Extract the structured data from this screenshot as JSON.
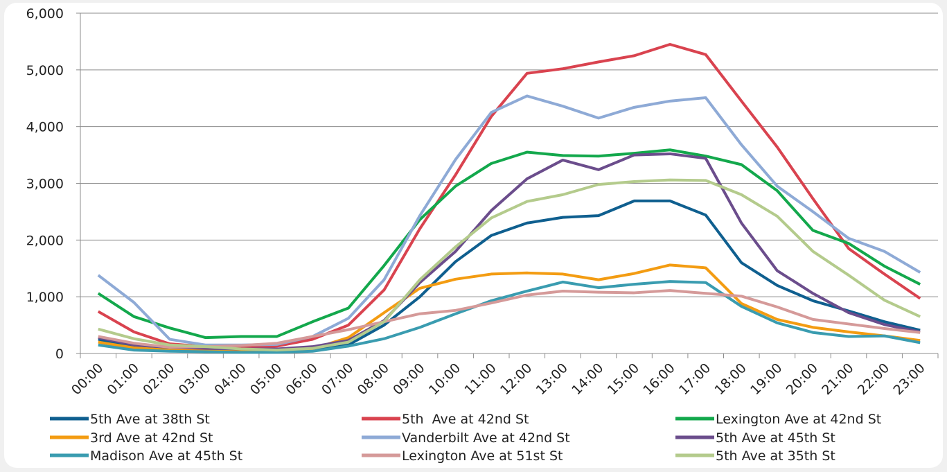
{
  "chart_data": {
    "type": "line",
    "categories": [
      "00:00",
      "01:00",
      "02:00",
      "03:00",
      "04:00",
      "05:00",
      "06:00",
      "07:00",
      "08:00",
      "09:00",
      "10:00",
      "11:00",
      "12:00",
      "13:00",
      "14:00",
      "15:00",
      "16:00",
      "17:00",
      "18:00",
      "19:00",
      "20:00",
      "21:00",
      "22:00",
      "23:00"
    ],
    "ylim": [
      0,
      6000
    ],
    "yticks": [
      0,
      {
        "value": 1000,
        "label": "1,000"
      },
      {
        "value": 2000,
        "label": "2,000"
      },
      {
        "value": 3000,
        "label": "3,000"
      },
      {
        "value": 4000,
        "label": "4,000"
      },
      {
        "value": 5000,
        "label": "5,000"
      },
      {
        "value": 6000,
        "label": "6,000"
      }
    ],
    "grid": true,
    "legend": "bottom",
    "series": [
      {
        "name": "5th Ave at 38th St",
        "color": "#0f5f8f",
        "values": [
          250,
          120,
          80,
          50,
          30,
          30,
          50,
          150,
          500,
          1000,
          1620,
          2080,
          2300,
          2400,
          2430,
          2690,
          2690,
          2440,
          1600,
          1200,
          930,
          750,
          560,
          410
        ]
      },
      {
        "name": "5th  Ave at 42nd St",
        "color": "#d9434f",
        "values": [
          740,
          380,
          170,
          120,
          110,
          130,
          250,
          500,
          1120,
          2200,
          3150,
          4180,
          4940,
          5020,
          5140,
          5250,
          5450,
          5270,
          4450,
          3640,
          2730,
          1850,
          1400,
          970
        ]
      },
      {
        "name": "Lexington Ave at 42nd St",
        "color": "#13a84c",
        "values": [
          1060,
          650,
          450,
          280,
          300,
          300,
          560,
          800,
          1550,
          2360,
          2950,
          3350,
          3550,
          3490,
          3480,
          3530,
          3590,
          3480,
          3330,
          2870,
          2170,
          1940,
          1540,
          1220
        ]
      },
      {
        "name": "3rd Ave at 42nd St",
        "color": "#f39c12",
        "values": [
          200,
          100,
          60,
          50,
          40,
          30,
          80,
          280,
          720,
          1150,
          1310,
          1400,
          1420,
          1400,
          1300,
          1410,
          1560,
          1510,
          880,
          600,
          460,
          380,
          310,
          230
        ]
      },
      {
        "name": "Vanderbilt Ave at 42nd St",
        "color": "#8eaad6",
        "values": [
          1380,
          900,
          250,
          150,
          150,
          160,
          300,
          620,
          1300,
          2430,
          3420,
          4250,
          4540,
          4360,
          4150,
          4340,
          4450,
          4510,
          3680,
          2950,
          2500,
          2030,
          1800,
          1430
        ]
      },
      {
        "name": "5th Ave at 45th St",
        "color": "#6b4d8c",
        "values": [
          280,
          150,
          110,
          90,
          80,
          80,
          120,
          230,
          580,
          1250,
          1800,
          2520,
          3080,
          3410,
          3240,
          3500,
          3520,
          3440,
          2300,
          1460,
          1060,
          720,
          510,
          380
        ]
      },
      {
        "name": "Madison Ave at 45th St",
        "color": "#3a9cb0",
        "values": [
          150,
          60,
          40,
          30,
          20,
          20,
          40,
          130,
          260,
          460,
          700,
          930,
          1100,
          1260,
          1160,
          1220,
          1270,
          1250,
          830,
          540,
          370,
          300,
          310,
          190
        ]
      },
      {
        "name": "Lexington Ave at 51st St",
        "color": "#d59a99",
        "values": [
          300,
          180,
          110,
          120,
          140,
          180,
          300,
          420,
          560,
          700,
          760,
          890,
          1030,
          1100,
          1080,
          1070,
          1110,
          1060,
          1010,
          820,
          600,
          520,
          440,
          370
        ]
      },
      {
        "name": "5th Ave at 35th St",
        "color": "#b4cb8c",
        "values": [
          430,
          260,
          150,
          120,
          80,
          60,
          90,
          200,
          560,
          1300,
          1880,
          2390,
          2680,
          2800,
          2980,
          3030,
          3060,
          3050,
          2800,
          2420,
          1800,
          1380,
          940,
          650
        ]
      }
    ]
  }
}
